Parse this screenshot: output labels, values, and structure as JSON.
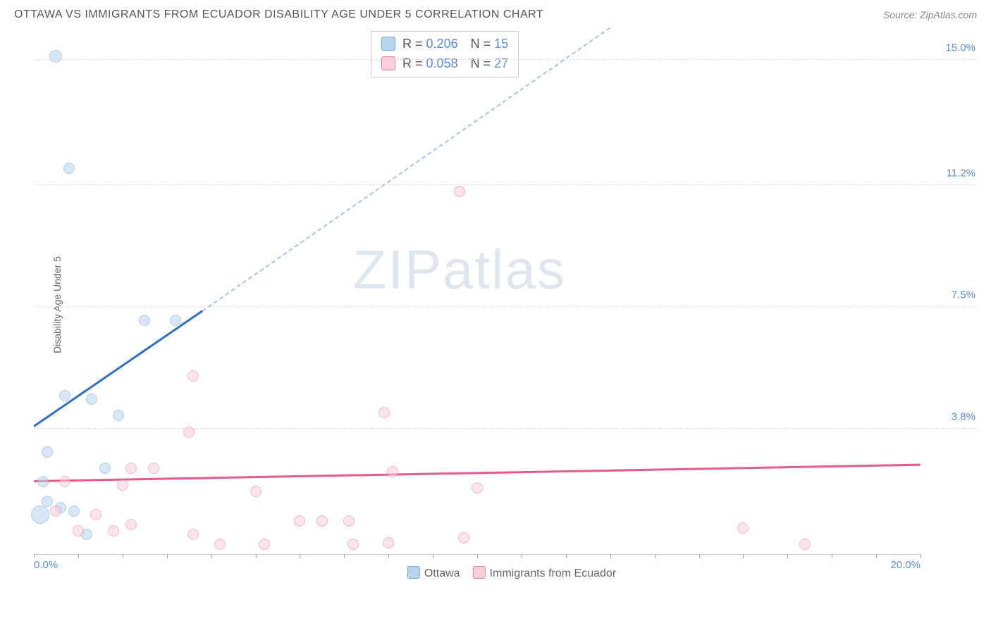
{
  "header": {
    "title": "OTTAWA VS IMMIGRANTS FROM ECUADOR DISABILITY AGE UNDER 5 CORRELATION CHART",
    "source": "Source: ZipAtlas.com"
  },
  "watermark": {
    "bold": "ZIP",
    "light": "atlas"
  },
  "chart": {
    "type": "scatter",
    "ylabel": "Disability Age Under 5",
    "xlim": [
      0,
      20
    ],
    "ylim": [
      0,
      16
    ],
    "x_ticks_major": [
      0,
      20
    ],
    "x_tick_labels": [
      "0.0%",
      "20.0%"
    ],
    "x_ticks_minor_step": 1,
    "y_ticks": [
      3.8,
      7.5,
      11.2,
      15.0
    ],
    "y_tick_labels": [
      "3.8%",
      "7.5%",
      "11.2%",
      "15.0%"
    ],
    "grid_color": "#dddddd",
    "background_color": "#ffffff",
    "series": [
      {
        "name": "Ottawa",
        "color_fill": "#b8d4ef",
        "color_stroke": "#6fa8dc",
        "marker_size": 16,
        "R": 0.206,
        "N": 15,
        "points": [
          {
            "x": 0.5,
            "y": 15.1,
            "size": 18
          },
          {
            "x": 0.8,
            "y": 11.7,
            "size": 16
          },
          {
            "x": 2.5,
            "y": 7.1,
            "size": 16
          },
          {
            "x": 3.2,
            "y": 7.1,
            "size": 16
          },
          {
            "x": 0.7,
            "y": 4.8,
            "size": 16
          },
          {
            "x": 1.3,
            "y": 4.7,
            "size": 16
          },
          {
            "x": 1.9,
            "y": 4.2,
            "size": 16
          },
          {
            "x": 0.3,
            "y": 3.1,
            "size": 16
          },
          {
            "x": 1.6,
            "y": 2.6,
            "size": 16
          },
          {
            "x": 0.2,
            "y": 2.2,
            "size": 16
          },
          {
            "x": 0.3,
            "y": 1.6,
            "size": 16
          },
          {
            "x": 0.6,
            "y": 1.4,
            "size": 16
          },
          {
            "x": 0.15,
            "y": 1.2,
            "size": 26
          },
          {
            "x": 0.9,
            "y": 1.3,
            "size": 16
          },
          {
            "x": 1.2,
            "y": 0.6,
            "size": 16
          }
        ],
        "trend": {
          "x1": 0,
          "y1": 3.9,
          "x2": 3.8,
          "y2": 7.4,
          "color": "#2e6fc9",
          "dash_to_x": 13.0,
          "dash_to_y": 16.0
        }
      },
      {
        "name": "Immigrants from Ecuador",
        "color_fill": "#f9d0da",
        "color_stroke": "#e680a0",
        "marker_size": 16,
        "R": 0.058,
        "N": 27,
        "points": [
          {
            "x": 9.6,
            "y": 11.0,
            "size": 16
          },
          {
            "x": 3.6,
            "y": 5.4,
            "size": 16
          },
          {
            "x": 7.9,
            "y": 4.3,
            "size": 16
          },
          {
            "x": 3.5,
            "y": 3.7,
            "size": 16
          },
          {
            "x": 2.7,
            "y": 2.6,
            "size": 16
          },
          {
            "x": 2.2,
            "y": 2.6,
            "size": 16
          },
          {
            "x": 2.0,
            "y": 2.1,
            "size": 16
          },
          {
            "x": 8.1,
            "y": 2.5,
            "size": 16
          },
          {
            "x": 5.0,
            "y": 1.9,
            "size": 16
          },
          {
            "x": 10.0,
            "y": 2.0,
            "size": 16
          },
          {
            "x": 0.7,
            "y": 2.2,
            "size": 16
          },
          {
            "x": 6.0,
            "y": 1.0,
            "size": 16
          },
          {
            "x": 6.5,
            "y": 1.0,
            "size": 16
          },
          {
            "x": 7.1,
            "y": 1.0,
            "size": 16
          },
          {
            "x": 1.4,
            "y": 1.2,
            "size": 16
          },
          {
            "x": 1.8,
            "y": 0.7,
            "size": 16
          },
          {
            "x": 2.2,
            "y": 0.9,
            "size": 16
          },
          {
            "x": 3.6,
            "y": 0.6,
            "size": 16
          },
          {
            "x": 4.2,
            "y": 0.3,
            "size": 16
          },
          {
            "x": 5.2,
            "y": 0.3,
            "size": 16
          },
          {
            "x": 7.2,
            "y": 0.3,
            "size": 16
          },
          {
            "x": 8.0,
            "y": 0.35,
            "size": 16
          },
          {
            "x": 9.7,
            "y": 0.5,
            "size": 16
          },
          {
            "x": 16.0,
            "y": 0.8,
            "size": 16
          },
          {
            "x": 17.4,
            "y": 0.3,
            "size": 16
          },
          {
            "x": 1.0,
            "y": 0.7,
            "size": 16
          },
          {
            "x": 0.5,
            "y": 1.3,
            "size": 16
          }
        ],
        "trend": {
          "x1": 0,
          "y1": 2.25,
          "x2": 20,
          "y2": 2.75,
          "color": "#e85a88"
        }
      }
    ],
    "bottom_legend": [
      {
        "swatch": "blue",
        "label": "Ottawa"
      },
      {
        "swatch": "pink",
        "label": "Immigrants from Ecuador"
      }
    ]
  }
}
